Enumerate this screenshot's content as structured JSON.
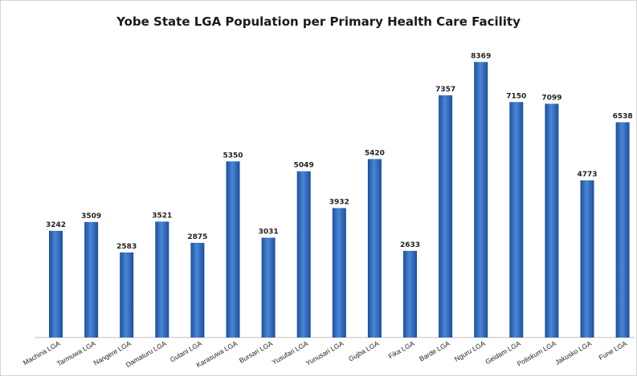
{
  "chart_data": {
    "type": "bar",
    "title": "Yobe State LGA Population per Primary Health Care Facility",
    "categories": [
      "Machina LGA",
      "Tarmuwa LGA",
      "Nangere LGA",
      "Damaturu LGA",
      "Gulani LGA",
      "Karasuwa LGA",
      "Bursari LGA",
      "Yusufari LGA",
      "Yunusari LGA",
      "Gujba LGA",
      "Fika LGA",
      "Barde LGA",
      "Nguru LGA",
      "Geidam LGA",
      "Potiskum LGA",
      "Jakusko LGA",
      "Fune LGA"
    ],
    "series": [
      {
        "values": [
          3242,
          3509,
          2583,
          3521,
          2875,
          5350,
          3031,
          5049,
          3932,
          5420,
          2633,
          7357,
          8369,
          7150,
          7099,
          4773,
          6538
        ]
      }
    ],
    "data_labels": [
      "3242",
      "3509",
      "2583",
      "3521",
      "2875",
      "5350",
      "3031",
      "5049",
      "3932",
      "5420",
      "2633",
      "7357",
      "8369",
      "7150",
      "7099",
      "4773",
      "6538"
    ],
    "xlabel": "",
    "ylabel": "",
    "ylim": [
      0,
      9000
    ],
    "grid": false,
    "legend": "none",
    "bar_color": "#4a86d8",
    "bar_color_dark": "#1d4f9a"
  }
}
